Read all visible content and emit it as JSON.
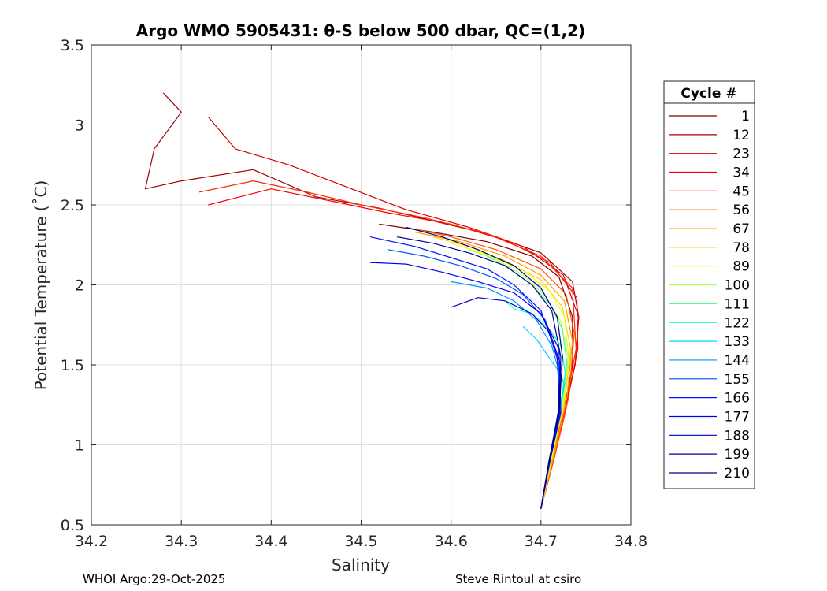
{
  "chart_data": {
    "type": "line",
    "title": "Argo WMO 5905431: θ-S below 500 dbar,  QC=(1,2)",
    "xlabel": "Salinity",
    "ylabel": "Potential Temperature (˚C)",
    "xlim": [
      34.2,
      34.8
    ],
    "ylim": [
      0.5,
      3.5
    ],
    "xticks": [
      34.2,
      34.3,
      34.4,
      34.5,
      34.6,
      34.7,
      34.8
    ],
    "xtick_labels": [
      "34.2",
      "34.3",
      "34.4",
      "34.5",
      "34.6",
      "34.7",
      "34.8"
    ],
    "yticks": [
      0.5,
      1,
      1.5,
      2,
      2.5,
      3,
      3.5
    ],
    "ytick_labels": [
      "0.5",
      "1",
      "1.5",
      "2",
      "2.5",
      "3",
      "3.5"
    ],
    "grid": true,
    "legend_title": "Cycle #",
    "legend_position": "right",
    "series": [
      {
        "name": "1",
        "color": "#7f0000",
        "s": [
          34.52,
          34.58,
          34.64,
          34.69,
          34.72,
          34.735,
          34.735,
          34.725,
          34.712,
          34.7
        ],
        "t": [
          2.38,
          2.33,
          2.27,
          2.18,
          2.05,
          1.8,
          1.5,
          1.2,
          0.9,
          0.6
        ]
      },
      {
        "name": "12",
        "color": "#a00000",
        "s": [
          34.28,
          34.3,
          34.27,
          34.26,
          34.3,
          34.38,
          34.45,
          34.52,
          34.58,
          34.64,
          34.7,
          34.735,
          34.742,
          34.738,
          34.725,
          34.712,
          34.7
        ],
        "t": [
          3.2,
          3.08,
          2.85,
          2.6,
          2.65,
          2.72,
          2.55,
          2.48,
          2.4,
          2.32,
          2.2,
          2.02,
          1.8,
          1.5,
          1.2,
          0.9,
          0.6
        ]
      },
      {
        "name": "23",
        "color": "#d40000",
        "s": [
          34.33,
          34.36,
          34.42,
          34.48,
          34.55,
          34.62,
          34.68,
          34.725,
          34.742,
          34.738,
          34.726,
          34.713,
          34.7
        ],
        "t": [
          3.05,
          2.85,
          2.75,
          2.62,
          2.47,
          2.36,
          2.24,
          2.06,
          1.8,
          1.5,
          1.2,
          0.9,
          0.6
        ]
      },
      {
        "name": "34",
        "color": "#ff0000",
        "s": [
          34.33,
          34.4,
          34.47,
          34.53,
          34.6,
          34.66,
          34.71,
          34.74,
          34.741,
          34.727,
          34.714,
          34.7
        ],
        "t": [
          2.5,
          2.6,
          2.52,
          2.45,
          2.38,
          2.28,
          2.14,
          1.92,
          1.6,
          1.2,
          0.9,
          0.6
        ]
      },
      {
        "name": "45",
        "color": "#ff2a00",
        "s": [
          34.32,
          34.38,
          34.44,
          34.5,
          34.57,
          34.64,
          34.7,
          34.735,
          34.739,
          34.726,
          34.713,
          34.7
        ],
        "t": [
          2.58,
          2.65,
          2.58,
          2.5,
          2.42,
          2.32,
          2.18,
          1.98,
          1.6,
          1.2,
          0.9,
          0.6
        ]
      },
      {
        "name": "56",
        "color": "#ff5500",
        "s": [
          34.55,
          34.6,
          34.65,
          34.7,
          34.728,
          34.737,
          34.731,
          34.716,
          34.7
        ],
        "t": [
          2.36,
          2.3,
          2.22,
          2.1,
          1.94,
          1.7,
          1.3,
          0.95,
          0.6
        ]
      },
      {
        "name": "67",
        "color": "#ff9f00",
        "s": [
          34.56,
          34.61,
          34.66,
          34.7,
          34.726,
          34.735,
          34.729,
          34.715,
          34.7
        ],
        "t": [
          2.33,
          2.27,
          2.18,
          2.06,
          1.9,
          1.65,
          1.3,
          0.95,
          0.6
        ]
      },
      {
        "name": "78",
        "color": "#ffd400",
        "s": [
          34.58,
          34.62,
          34.66,
          34.7,
          34.724,
          34.733,
          34.727,
          34.714,
          34.7
        ],
        "t": [
          2.3,
          2.24,
          2.15,
          2.03,
          1.86,
          1.6,
          1.3,
          0.95,
          0.6
        ]
      },
      {
        "name": "89",
        "color": "#e8ff14",
        "s": [
          34.6,
          34.64,
          34.68,
          34.71,
          34.726,
          34.731,
          34.726,
          34.713,
          34.7
        ],
        "t": [
          2.26,
          2.19,
          2.09,
          1.96,
          1.8,
          1.55,
          1.3,
          0.95,
          0.6
        ]
      },
      {
        "name": "100",
        "color": "#b4ff4a",
        "s": [
          34.62,
          34.65,
          34.68,
          34.705,
          34.722,
          34.73,
          34.725,
          34.712,
          34.7
        ],
        "t": [
          2.22,
          2.16,
          2.06,
          1.93,
          1.77,
          1.55,
          1.3,
          0.95,
          0.6
        ]
      },
      {
        "name": "111",
        "color": "#4aff94",
        "s": [
          34.64,
          34.665,
          34.69,
          34.71,
          34.724,
          34.729,
          34.724,
          34.712,
          34.7
        ],
        "t": [
          2.18,
          2.1,
          2.0,
          1.88,
          1.72,
          1.5,
          1.3,
          0.95,
          0.6
        ]
      },
      {
        "name": "122",
        "color": "#14ffd4",
        "s": [
          34.66,
          34.67,
          34.69,
          34.71,
          34.722,
          34.727,
          34.723,
          34.711,
          34.7
        ],
        "t": [
          1.9,
          1.85,
          1.82,
          1.72,
          1.62,
          1.45,
          1.3,
          0.95,
          0.6
        ]
      },
      {
        "name": "133",
        "color": "#00d4ff",
        "s": [
          34.68,
          34.695,
          34.705,
          34.712,
          34.72,
          34.726,
          34.722,
          34.71,
          34.7
        ],
        "t": [
          1.74,
          1.66,
          1.58,
          1.52,
          1.46,
          1.38,
          1.25,
          0.92,
          0.6
        ]
      },
      {
        "name": "144",
        "color": "#0094ff",
        "s": [
          34.6,
          34.64,
          34.67,
          34.695,
          34.712,
          34.722,
          34.72,
          34.709,
          34.7
        ],
        "t": [
          2.02,
          1.98,
          1.9,
          1.78,
          1.62,
          1.42,
          1.2,
          0.9,
          0.6
        ]
      },
      {
        "name": "155",
        "color": "#0054ff",
        "s": [
          34.53,
          34.57,
          34.61,
          34.65,
          34.68,
          34.705,
          34.72,
          34.72,
          34.709,
          34.7
        ],
        "t": [
          2.22,
          2.18,
          2.12,
          2.04,
          1.94,
          1.78,
          1.5,
          1.2,
          0.9,
          0.6
        ]
      },
      {
        "name": "166",
        "color": "#0014ff",
        "s": [
          34.51,
          34.56,
          34.6,
          34.64,
          34.67,
          34.7,
          34.718,
          34.721,
          34.71,
          34.7
        ],
        "t": [
          2.3,
          2.24,
          2.17,
          2.1,
          2.0,
          1.84,
          1.55,
          1.2,
          0.9,
          0.6
        ]
      },
      {
        "name": "177",
        "color": "#0000ea",
        "s": [
          34.51,
          34.55,
          34.59,
          34.63,
          34.67,
          34.7,
          34.72,
          34.722,
          34.71,
          34.7
        ],
        "t": [
          2.14,
          2.13,
          2.08,
          2.02,
          1.95,
          1.82,
          1.6,
          1.2,
          0.9,
          0.6
        ]
      },
      {
        "name": "188",
        "color": "#0000bf",
        "s": [
          34.6,
          34.63,
          34.66,
          34.69,
          34.71,
          34.722,
          34.719,
          34.709,
          34.7
        ],
        "t": [
          1.86,
          1.92,
          1.9,
          1.82,
          1.7,
          1.5,
          1.2,
          0.9,
          0.6
        ]
      },
      {
        "name": "199",
        "color": "#00009f",
        "s": [
          34.54,
          34.58,
          34.62,
          34.66,
          34.69,
          34.712,
          34.722,
          34.72,
          34.709,
          34.7
        ],
        "t": [
          2.3,
          2.26,
          2.2,
          2.12,
          2.0,
          1.84,
          1.55,
          1.2,
          0.9,
          0.6
        ]
      },
      {
        "name": "210",
        "color": "#00007f",
        "s": [
          34.55,
          34.59,
          34.63,
          34.67,
          34.7,
          34.718,
          34.724,
          34.72,
          34.709,
          34.7
        ],
        "t": [
          2.36,
          2.3,
          2.22,
          2.12,
          1.98,
          1.8,
          1.55,
          1.2,
          0.9,
          0.6
        ]
      }
    ]
  },
  "footer": {
    "left": "WHOI Argo:29-Oct-2025",
    "right": "Steve Rintoul at csiro"
  }
}
